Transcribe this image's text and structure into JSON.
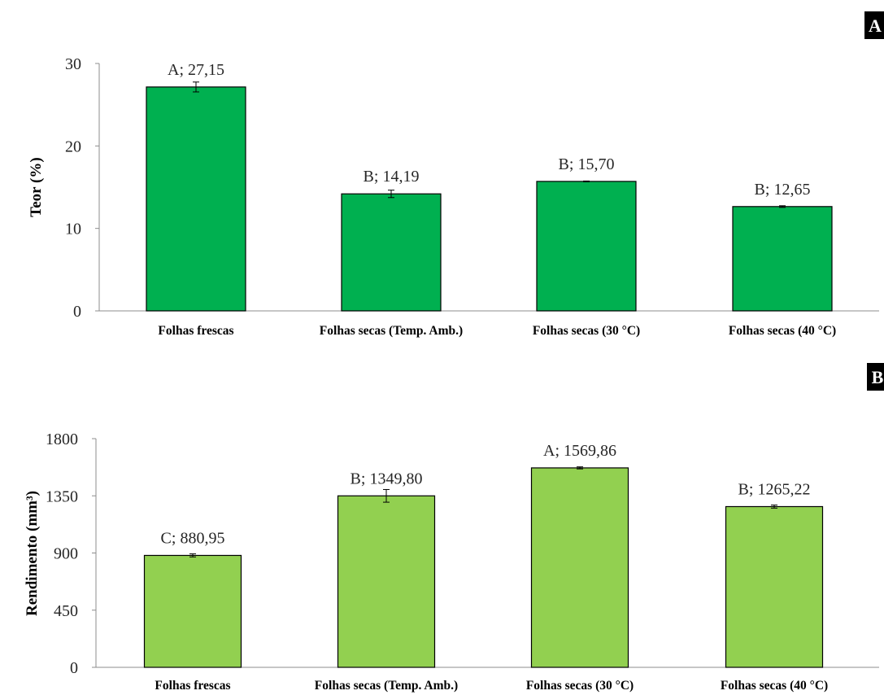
{
  "chart_data": [
    {
      "type": "bar",
      "panel_label": "A",
      "ylabel": "Teor (%)",
      "ylim": [
        0,
        30
      ],
      "yticks": [
        "0",
        "10",
        "20",
        "30"
      ],
      "ytick_values": [
        0,
        10,
        20,
        30
      ],
      "categories": [
        "Folhas frescas",
        "Folhas secas (Temp. Amb.)",
        "Folhas secas (30 °C)",
        "Folhas secas (40 °C)"
      ],
      "values": [
        27.15,
        14.19,
        15.7,
        12.65
      ],
      "error": [
        0.6,
        0.45,
        0.05,
        0.1
      ],
      "data_labels": [
        "A; 27,15",
        "B; 14,19",
        "B; 15,70",
        "B; 12,65"
      ],
      "bar_color": "#00b050",
      "grid": false
    },
    {
      "type": "bar",
      "panel_label": "B",
      "ylabel": "Rendimento (mm³)",
      "ylim": [
        0,
        1800
      ],
      "yticks": [
        "0",
        "450",
        "900",
        "1350",
        "1800"
      ],
      "ytick_values": [
        0,
        450,
        900,
        1350,
        1800
      ],
      "categories": [
        "Folhas frescas",
        "Folhas secas (Temp. Amb.)",
        "Folhas secas (30 °C)",
        "Folhas secas (40 °C)"
      ],
      "values": [
        880.95,
        1349.8,
        1569.86,
        1265.22
      ],
      "error": [
        12,
        50,
        8,
        12
      ],
      "data_labels": [
        "C; 880,95",
        "B; 1349,80",
        "A; 1569,86",
        "B; 1265,22"
      ],
      "bar_color": "#92d050",
      "grid": false
    }
  ]
}
